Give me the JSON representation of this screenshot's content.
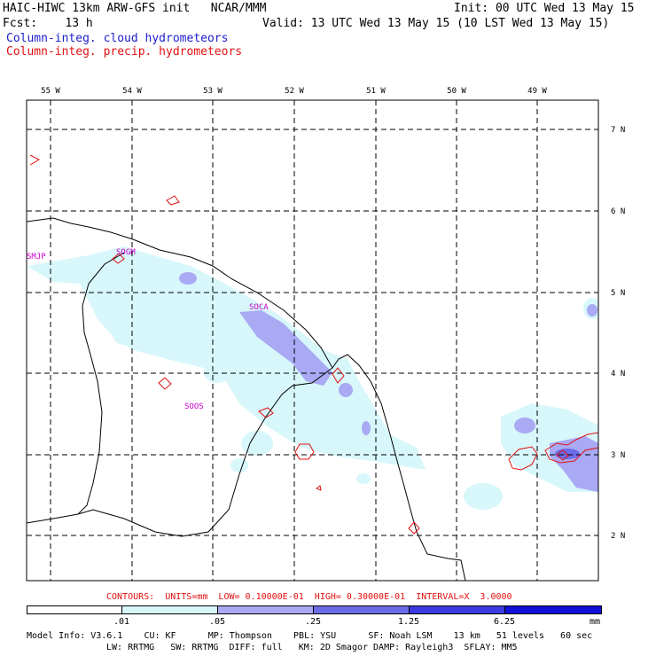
{
  "header": {
    "line1_left": "HAIC-HIWC 13km ARW-GFS init   NCAR/MMM",
    "line1_right": "Init: 00 UTC Wed 13 May 15",
    "line2_left": "Fcst:    13 h",
    "line2_right": "Valid: 13 UTC Wed 13 May 15 (10 LST Wed 13 May 15)",
    "legend_cloud": "Column-integ. cloud hydrometeors",
    "legend_precip": "Column-integ. precip. hydrometeors"
  },
  "map": {
    "lon_labels": [
      "55 W",
      "54 W",
      "53 W",
      "52 W",
      "51 W",
      "50 W",
      "49 W"
    ],
    "lat_labels": [
      "7 N",
      "6 N",
      "5 N",
      "4 N",
      "3 N",
      "2 N"
    ],
    "stations": [
      "SMJP",
      "SOGM",
      "SOCA",
      "SOOS"
    ],
    "colors": {
      "cloud_fill_1": "#d7f7fb",
      "cloud_fill_2": "#a9a9f4",
      "cloud_fill_3": "#6b6be8",
      "contour": "#e01010",
      "station": "#cc00cc",
      "grid": "#000000"
    }
  },
  "contour_info": "CONTOURS:  UNITS=mm  LOW= 0.10000E-01  HIGH= 0.30000E-01  INTERVAL=X  3.0000",
  "colorbar": {
    "labels": [
      ".01",
      ".05",
      ".25",
      "1.25",
      "6.25",
      "mm"
    ],
    "colors": [
      "#ffffff",
      "#d7f7fb",
      "#a9a9f4",
      "#6b6be8",
      "#3b3be0",
      "#1010d8"
    ]
  },
  "model_info": {
    "line1": "Model Info: V3.6.1    CU: KF      MP: Thompson    PBL: YSU      SF: Noah LSM    13 km   51 levels   60 sec",
    "line2": "LW: RRTMG   SW: RRTMG  DIFF: full   KM: 2D Smagor DAMP: Rayleigh3  SFLAY: MM5"
  }
}
